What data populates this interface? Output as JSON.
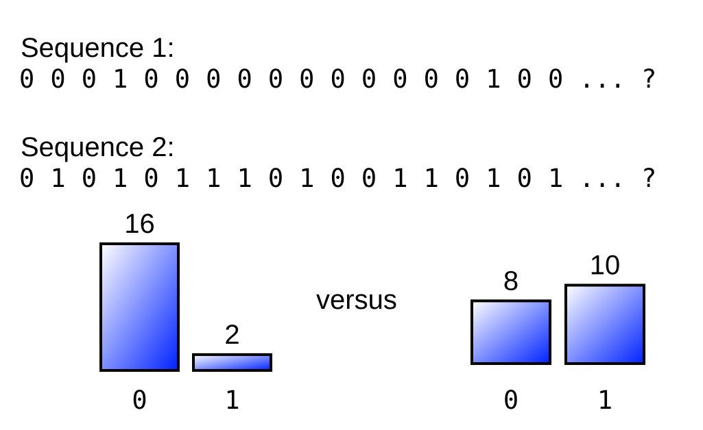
{
  "sequences": [
    {
      "label": "Sequence 1:",
      "values": "0 0 0 1 0 0 0 0 0 0 0 0 0 0 0 1 0 0 ... ?"
    },
    {
      "label": "Sequence 2:",
      "values": "0 1 0 1 0 1 1 1 0 1 0 0 1 1 0 1 0 1 ... ?"
    }
  ],
  "versus_label": "versus",
  "chart_data": [
    {
      "type": "bar",
      "categories": [
        "0",
        "1"
      ],
      "values": [
        16,
        2
      ],
      "title": "",
      "xlabel": "",
      "ylabel": "",
      "grid": false
    },
    {
      "type": "bar",
      "categories": [
        "0",
        "1"
      ],
      "values": [
        8,
        10
      ],
      "title": "",
      "xlabel": "",
      "ylabel": "",
      "grid": false
    }
  ],
  "colors": {
    "bar_light": "#ffffff",
    "bar_dark": "#0022ff",
    "bar_stroke": "#000000"
  }
}
